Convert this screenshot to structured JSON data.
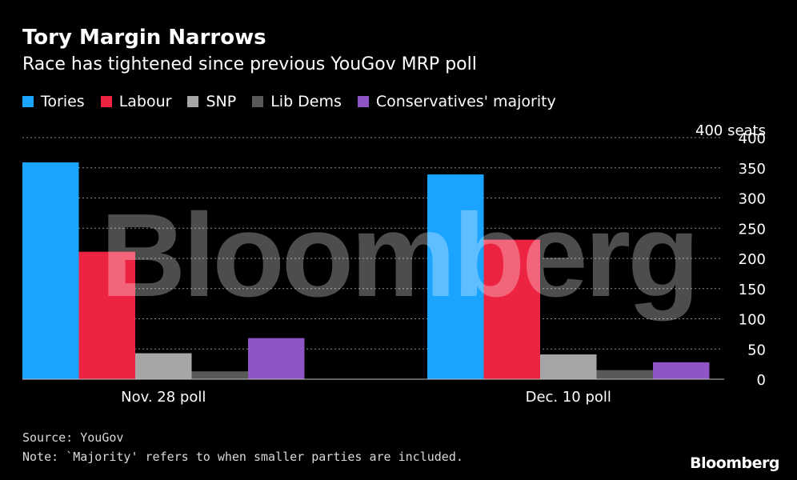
{
  "title": "Tory Margin Narrows",
  "subtitle": "Race has tightened since previous YouGov MRP poll",
  "source": "Source: YouGov",
  "note": "Note: `Majority' refers to when smaller parties are included.",
  "logo": "Bloomberg",
  "watermark": "Bloomberg",
  "chart_data": {
    "type": "bar",
    "categories": [
      "Nov. 28 poll",
      "Dec. 10 poll"
    ],
    "series": [
      {
        "name": "Tories",
        "color": "#1aa3ff",
        "values": [
          359,
          339
        ]
      },
      {
        "name": "Labour",
        "color": "#ec2341",
        "values": [
          211,
          231
        ]
      },
      {
        "name": "SNP",
        "color": "#a6a6a6",
        "values": [
          43,
          41
        ]
      },
      {
        "name": "Lib Dems",
        "color": "#595959",
        "values": [
          13,
          15
        ]
      },
      {
        "name": "Conservatives' majority",
        "color": "#9055c4",
        "values": [
          68,
          28
        ]
      }
    ],
    "ylim": [
      0,
      400
    ],
    "yticks": [
      0,
      50,
      100,
      150,
      200,
      250,
      300,
      350,
      400
    ],
    "yunit_label": "400 seats",
    "grid": true,
    "legend_position": "top-left"
  }
}
